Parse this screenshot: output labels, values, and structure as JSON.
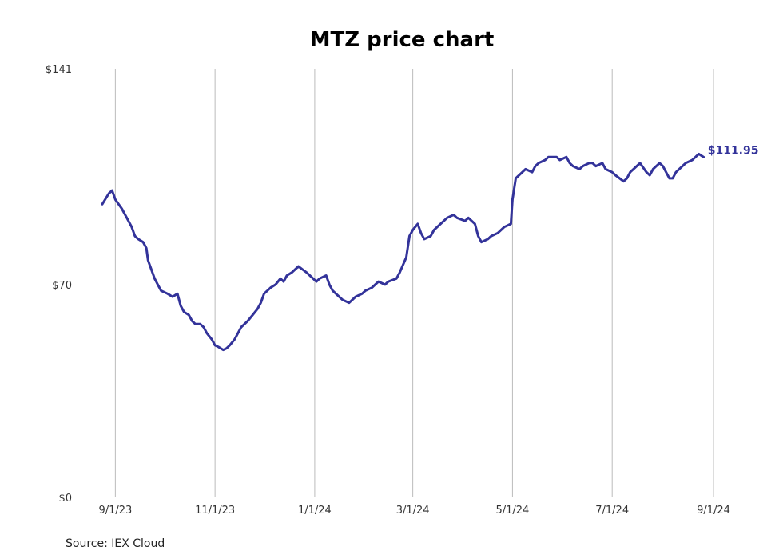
{
  "chart_data": {
    "type": "line",
    "title": "MTZ price chart",
    "source": "Source: IEX Cloud",
    "color": "#33339a",
    "grid_color": "#bbbbbb",
    "ylim": [
      0,
      141
    ],
    "y_ticks": [
      {
        "value": 0,
        "label": "$0"
      },
      {
        "value": 70,
        "label": "$70"
      },
      {
        "value": 141,
        "label": "$141"
      }
    ],
    "x_range": [
      "2023-08-24",
      "2024-09-01"
    ],
    "x_ticks": [
      {
        "date": "2023-09-01",
        "label": "9/1/23"
      },
      {
        "date": "2023-11-01",
        "label": "11/1/23"
      },
      {
        "date": "2024-01-01",
        "label": "1/1/24"
      },
      {
        "date": "2024-03-01",
        "label": "3/1/24"
      },
      {
        "date": "2024-05-01",
        "label": "5/1/24"
      },
      {
        "date": "2024-07-01",
        "label": "7/1/24"
      },
      {
        "date": "2024-09-01",
        "label": "9/1/24"
      }
    ],
    "last_value_label": "$111.95",
    "series": [
      {
        "x": [
          "2023-08-24",
          "2023-08-28",
          "2023-08-30",
          "2023-09-01",
          "2023-09-05",
          "2023-09-08",
          "2023-09-11",
          "2023-09-13",
          "2023-09-15",
          "2023-09-18",
          "2023-09-19",
          "2023-09-20",
          "2023-09-21",
          "2023-09-25",
          "2023-09-27",
          "2023-09-29",
          "2023-10-03",
          "2023-10-06",
          "2023-10-09",
          "2023-10-11",
          "2023-10-13",
          "2023-10-16",
          "2023-10-18",
          "2023-10-20",
          "2023-10-23",
          "2023-10-25",
          "2023-10-27",
          "2023-10-30",
          "2023-10-31",
          "2023-11-01",
          "2023-11-03",
          "2023-11-06",
          "2023-11-08",
          "2023-11-10",
          "2023-11-13",
          "2023-11-15",
          "2023-11-17",
          "2023-11-21",
          "2023-11-24",
          "2023-11-27",
          "2023-11-29",
          "2023-12-01",
          "2023-12-05",
          "2023-12-08",
          "2023-12-11",
          "2023-12-13",
          "2023-12-15",
          "2023-12-18",
          "2023-12-20",
          "2023-12-22",
          "2023-12-27",
          "2023-12-29",
          "2024-01-02",
          "2024-01-04",
          "2024-01-08",
          "2024-01-10",
          "2024-01-12",
          "2024-01-16",
          "2024-01-18",
          "2024-01-22",
          "2024-01-24",
          "2024-01-26",
          "2024-01-30",
          "2024-02-01",
          "2024-02-05",
          "2024-02-07",
          "2024-02-09",
          "2024-02-13",
          "2024-02-15",
          "2024-02-20",
          "2024-02-22",
          "2024-02-26",
          "2024-02-28",
          "2024-03-01",
          "2024-03-04",
          "2024-03-06",
          "2024-03-08",
          "2024-03-12",
          "2024-03-14",
          "2024-03-18",
          "2024-03-20",
          "2024-03-22",
          "2024-03-26",
          "2024-03-28",
          "2024-04-02",
          "2024-04-04",
          "2024-04-08",
          "2024-04-10",
          "2024-04-12",
          "2024-04-16",
          "2024-04-18",
          "2024-04-22",
          "2024-04-24",
          "2024-04-26",
          "2024-04-30",
          "2024-05-01",
          "2024-05-03",
          "2024-05-07",
          "2024-05-09",
          "2024-05-13",
          "2024-05-15",
          "2024-05-17",
          "2024-05-21",
          "2024-05-23",
          "2024-05-28",
          "2024-05-30",
          "2024-06-03",
          "2024-06-05",
          "2024-06-07",
          "2024-06-11",
          "2024-06-13",
          "2024-06-17",
          "2024-06-19",
          "2024-06-21",
          "2024-06-25",
          "2024-06-27",
          "2024-07-01",
          "2024-07-03",
          "2024-07-08",
          "2024-07-10",
          "2024-07-12",
          "2024-07-16",
          "2024-07-18",
          "2024-07-22",
          "2024-07-24",
          "2024-07-26",
          "2024-07-30",
          "2024-08-01",
          "2024-08-05",
          "2024-08-07",
          "2024-08-09",
          "2024-08-13",
          "2024-08-15",
          "2024-08-19",
          "2024-08-21",
          "2024-08-23",
          "2024-08-26"
        ],
        "values": [
          96.5,
          100,
          101,
          98,
          95,
          92,
          89,
          86,
          85,
          84,
          83,
          82,
          78,
          72,
          70,
          68,
          67,
          66,
          67,
          63,
          61,
          60,
          58,
          57,
          57,
          56,
          54,
          52,
          51,
          50,
          49.5,
          48.5,
          49,
          50,
          52,
          54,
          56,
          58,
          60,
          62,
          64,
          67,
          69,
          70,
          72,
          71,
          73,
          74,
          75,
          76,
          74,
          73,
          71,
          72,
          73,
          70,
          68,
          66,
          65,
          64,
          65,
          66,
          67,
          68,
          69,
          70,
          71,
          70,
          71,
          72,
          74,
          79,
          86,
          88,
          90,
          87,
          85,
          86,
          88,
          90,
          91,
          92,
          93,
          92,
          91,
          92,
          90,
          86,
          84,
          85,
          86,
          87,
          88,
          89,
          90,
          98,
          105,
          107,
          108,
          107,
          109,
          110,
          111,
          112,
          112,
          111,
          112,
          110,
          109,
          108,
          109,
          110,
          110,
          109,
          110,
          108,
          107,
          106,
          104,
          105,
          107,
          109,
          110,
          107,
          106,
          108,
          110,
          109,
          105,
          105,
          107,
          109,
          110,
          111,
          112,
          113,
          111.95
        ]
      }
    ]
  }
}
